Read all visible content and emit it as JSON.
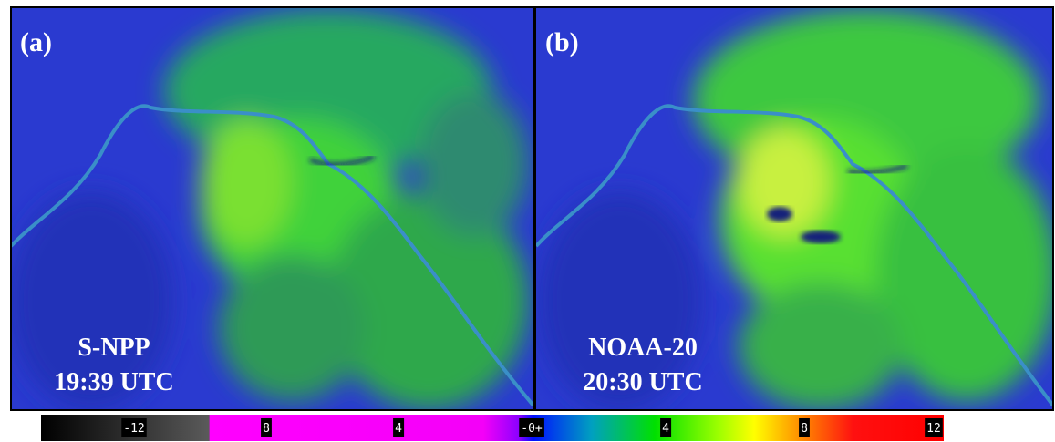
{
  "panels": [
    {
      "label": "(a)",
      "satellite": "S-NPP",
      "time": "19:39 UTC"
    },
    {
      "label": "(b)",
      "satellite": "NOAA-20",
      "time": "20:30 UTC"
    }
  ],
  "colorbar": {
    "tick_labels": [
      "-12",
      "8",
      "4",
      "-0+",
      "4",
      "8",
      "12"
    ]
  }
}
